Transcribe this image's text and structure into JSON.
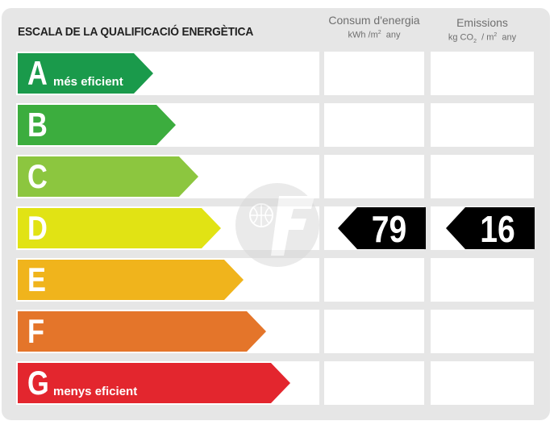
{
  "title": "ESCALA DE LA QUALIFICACIÓ ENERGÈTICA",
  "columns": {
    "consum": {
      "header": "Consum d'energia",
      "unit_main": "kWh /m",
      "unit_sup": "2",
      "unit_tail": "  any"
    },
    "emissions": {
      "header": "Emissions",
      "unit_pre": "kg CO",
      "unit_sub": "2",
      "unit_mid": "  / m",
      "unit_sup": "2",
      "unit_tail": "  any"
    }
  },
  "classes": [
    {
      "letter": "A",
      "label": "més eficient",
      "color": "#1a9a4b"
    },
    {
      "letter": "B",
      "label": "",
      "color": "#3cad3e"
    },
    {
      "letter": "C",
      "label": "",
      "color": "#8cc63f"
    },
    {
      "letter": "D",
      "label": "",
      "color": "#e1e314"
    },
    {
      "letter": "E",
      "label": "",
      "color": "#f0b41c"
    },
    {
      "letter": "F",
      "label": "",
      "color": "#e4752a"
    },
    {
      "letter": "G",
      "label": "menys eficient",
      "color": "#e3262e"
    }
  ],
  "rating": {
    "class": "D",
    "consum_value": "79",
    "emissions_value": "16",
    "tag_color": "#000000"
  },
  "watermark_icon": "logo-watermark-icon"
}
